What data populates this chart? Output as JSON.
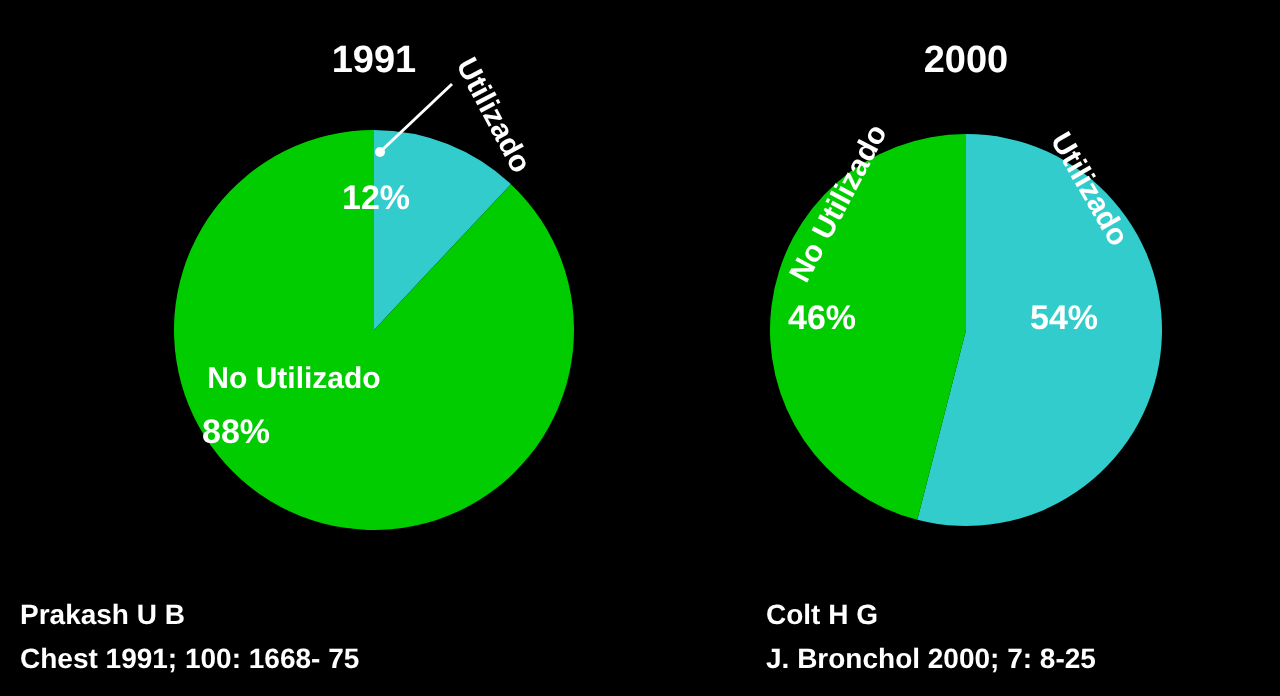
{
  "chart_data": [
    {
      "type": "pie",
      "title": "1991",
      "categories": [
        "Utilizado",
        "No Utilizado"
      ],
      "values": [
        12,
        88
      ],
      "colors": [
        "#33cccc",
        "#00cc00"
      ],
      "value_labels": [
        "12%",
        "88%"
      ],
      "annotations": [
        "Prakash U B",
        "Chest 1991; 100: 1668- 75"
      ]
    },
    {
      "type": "pie",
      "title": "2000",
      "categories": [
        "Utilizado",
        "No Utilizado"
      ],
      "values": [
        54,
        46
      ],
      "colors": [
        "#33cccc",
        "#00cc00"
      ],
      "value_labels": [
        "54%",
        "46%"
      ],
      "annotations": [
        "Colt H G",
        "J. Bronchol 2000; 7: 8-25"
      ]
    }
  ]
}
